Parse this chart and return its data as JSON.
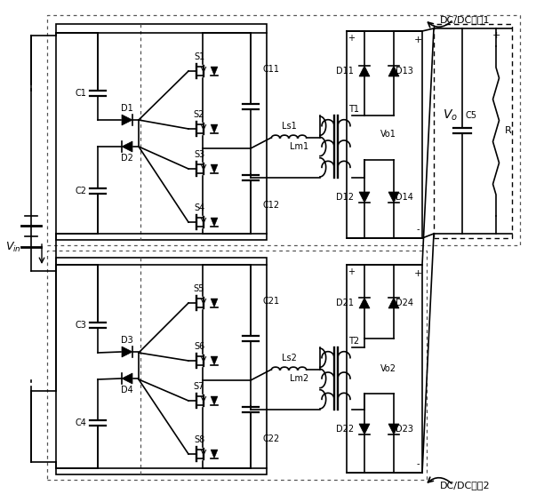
{
  "fig_w": 6.3,
  "fig_h": 5.56,
  "dpi": 100,
  "lw": 1.2,
  "label_DC1": "DC/DC模块1",
  "label_DC2": "DC/DC模块2",
  "label_Vin": "V_in",
  "label_Vo": "V_o",
  "label_Vo1": "Vo1",
  "label_Vo2": "Vo2",
  "label_R": "R",
  "label_C5": "C5"
}
